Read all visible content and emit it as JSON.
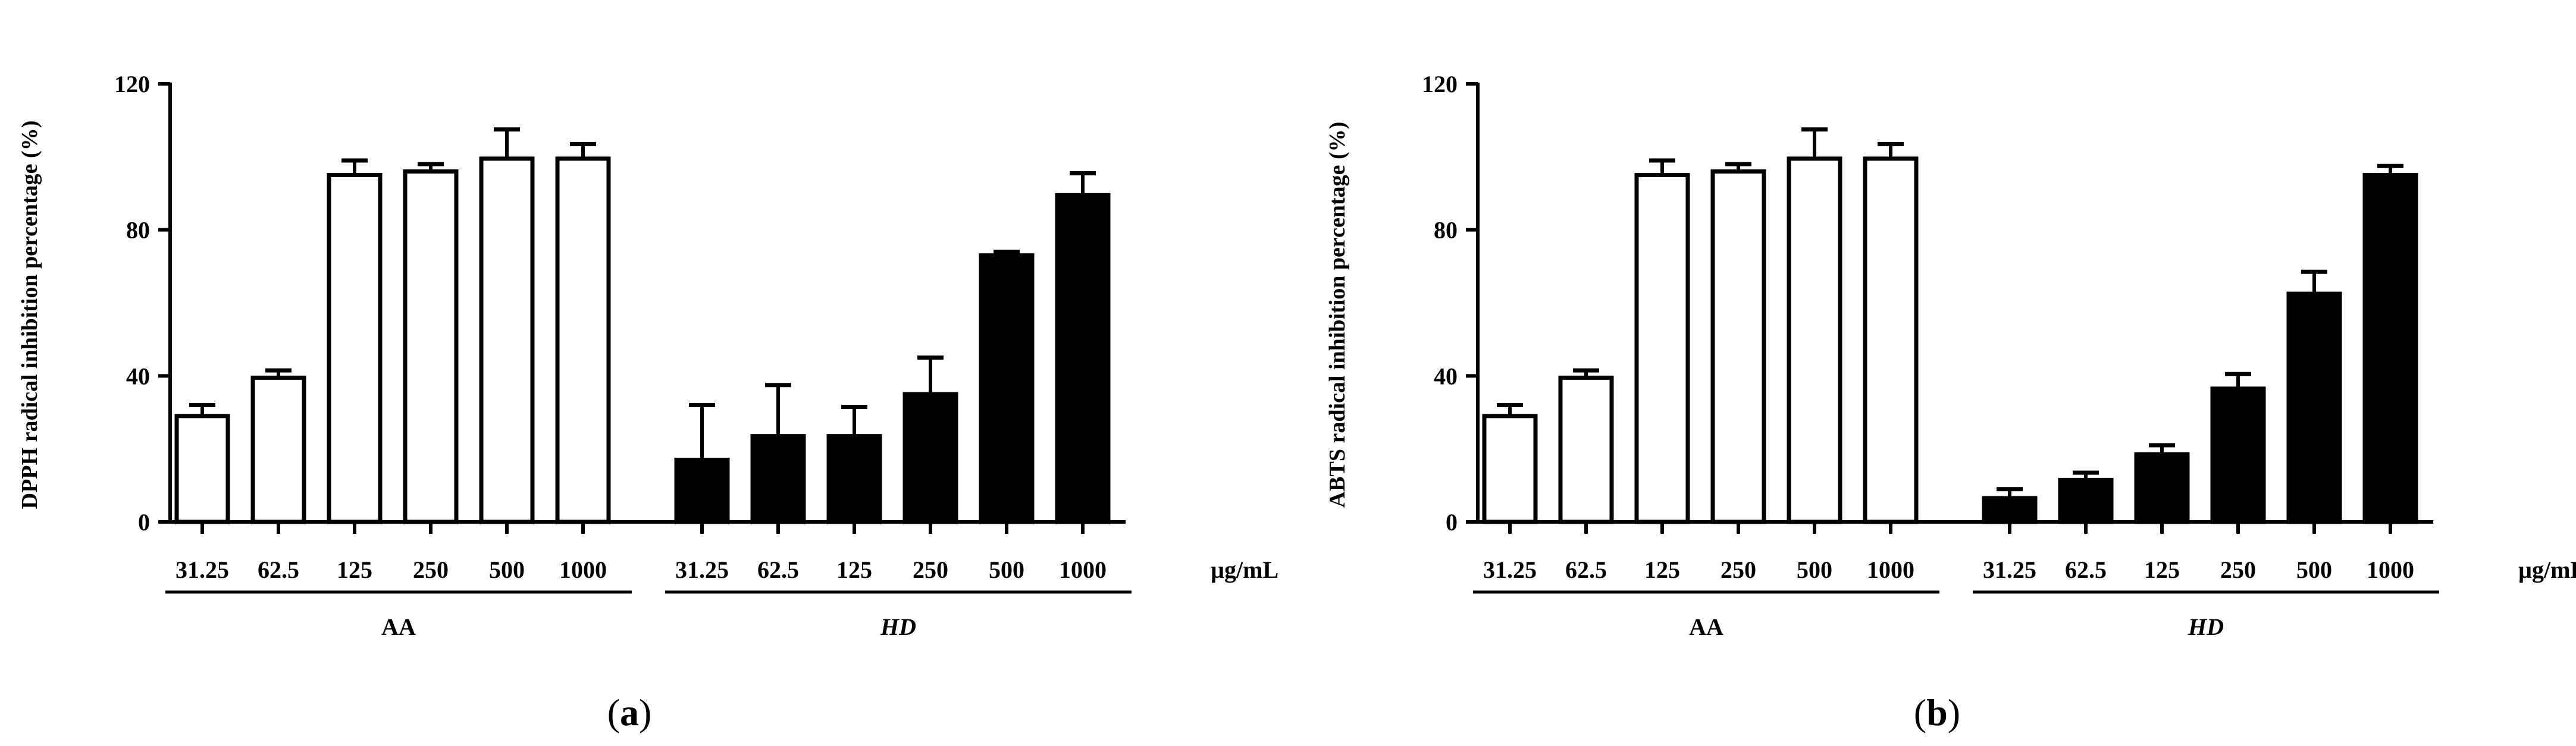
{
  "chart_data": [
    {
      "type": "bar",
      "panel_label": "a",
      "ylabel": "DPPH radical inhibition percentage (%)",
      "ylim": [
        0,
        120
      ],
      "yticks": [
        0,
        40,
        80,
        120
      ],
      "unit": "µg/mL",
      "groups": [
        {
          "name": "AA",
          "italic": false,
          "fill": "#ffffff",
          "categories": [
            "31.25",
            "62.5",
            "125",
            "250",
            "500",
            "1000"
          ],
          "values": [
            29,
            39.5,
            95,
            96,
            99.5,
            99.5
          ],
          "errors": [
            3,
            2,
            4,
            2,
            8,
            4
          ]
        },
        {
          "name": "HD",
          "italic": true,
          "fill": "#000000",
          "categories": [
            "31.25",
            "62.5",
            "125",
            "250",
            "500",
            "1000"
          ],
          "values": [
            17,
            23.5,
            23.5,
            35,
            73,
            89.5
          ],
          "errors": [
            15,
            14,
            8,
            10,
            1,
            6
          ]
        }
      ]
    },
    {
      "type": "bar",
      "panel_label": "b",
      "ylabel": "ABTS radical inhibition percentage (%)",
      "ylim": [
        0,
        120
      ],
      "yticks": [
        0,
        40,
        80,
        120
      ],
      "unit": "µg/mL",
      "groups": [
        {
          "name": "AA",
          "italic": false,
          "fill": "#ffffff",
          "categories": [
            "31.25",
            "62.5",
            "125",
            "250",
            "500",
            "1000"
          ],
          "values": [
            29,
            39.5,
            95,
            96,
            99.5,
            99.5
          ],
          "errors": [
            3,
            2,
            4,
            2,
            8,
            4
          ]
        },
        {
          "name": "HD",
          "italic": true,
          "fill": "#000000",
          "categories": [
            "31.25",
            "62.5",
            "125",
            "250",
            "500",
            "1000"
          ],
          "values": [
            6.5,
            11.5,
            18.5,
            36.5,
            62.5,
            95
          ],
          "errors": [
            2.5,
            2,
            2.5,
            4,
            6,
            2.5
          ]
        }
      ]
    }
  ]
}
